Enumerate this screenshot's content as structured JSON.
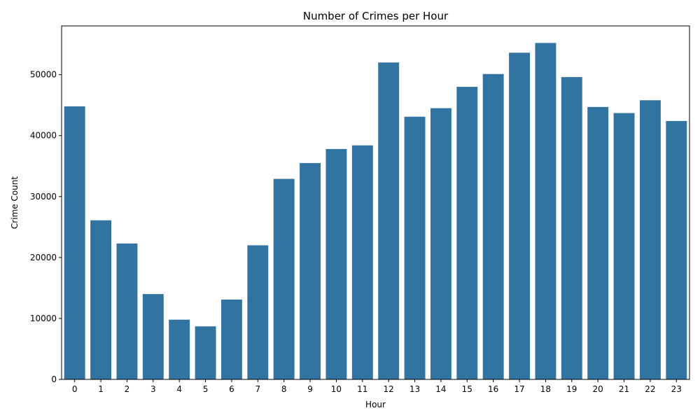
{
  "chart_data": {
    "type": "bar",
    "title": "Number of Crimes per Hour",
    "xlabel": "Hour",
    "ylabel": "Crime Count",
    "categories": [
      "0",
      "1",
      "2",
      "3",
      "4",
      "5",
      "6",
      "7",
      "8",
      "9",
      "10",
      "11",
      "12",
      "13",
      "14",
      "15",
      "16",
      "17",
      "18",
      "19",
      "20",
      "21",
      "22",
      "23"
    ],
    "values": [
      44800,
      26100,
      22300,
      14000,
      9800,
      8700,
      13100,
      22000,
      32900,
      35500,
      37800,
      38400,
      52000,
      43100,
      44500,
      48000,
      50100,
      53600,
      55200,
      49600,
      44700,
      43700,
      45800,
      42400
    ],
    "yticks": [
      0,
      10000,
      20000,
      30000,
      40000,
      50000
    ],
    "ylim": [
      0,
      58000
    ],
    "bar_color": "#3274a1",
    "grid": false,
    "legend": "none"
  }
}
